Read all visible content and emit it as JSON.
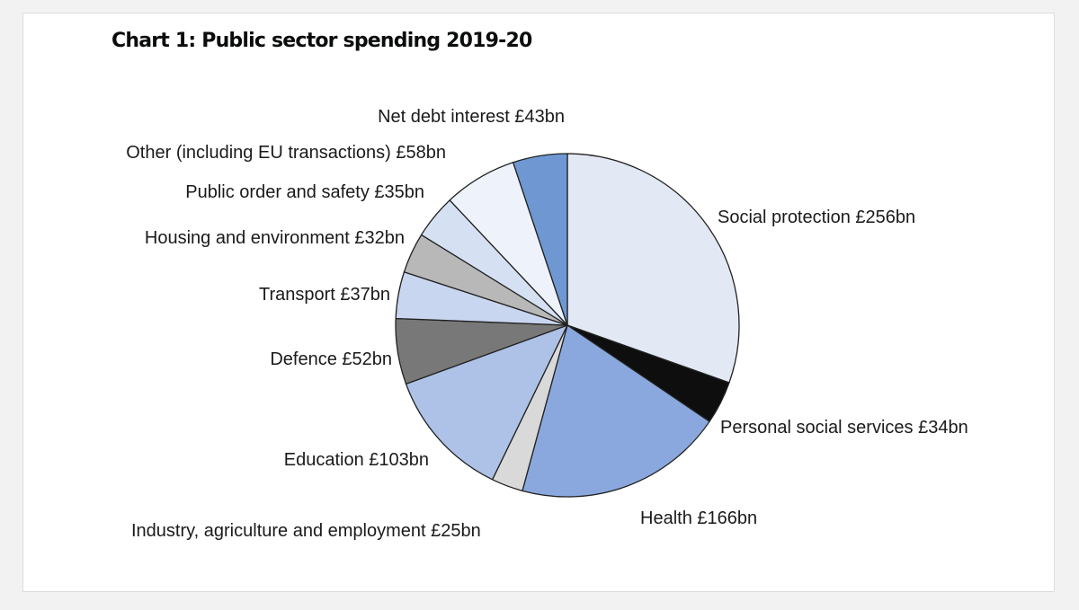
{
  "chart_data": {
    "type": "pie",
    "title": "Chart 1: Public sector spending 2019-20",
    "unit": "£bn",
    "slices": [
      {
        "name": "Social protection",
        "value": 256,
        "label": "Social protection £256bn",
        "color": "#e2e8f4"
      },
      {
        "name": "Personal social services",
        "value": 34,
        "label": "Personal social services £34bn",
        "color": "#0e0e0e"
      },
      {
        "name": "Health",
        "value": 166,
        "label": "Health £166bn",
        "color": "#8aa8dd"
      },
      {
        "name": "Industry, agriculture and employment",
        "value": 25,
        "label": "Industry, agriculture and employment £25bn",
        "color": "#d9d9d9"
      },
      {
        "name": "Education",
        "value": 103,
        "label": "Education £103bn",
        "color": "#adc2e6"
      },
      {
        "name": "Defence",
        "value": 52,
        "label": "Defence £52bn",
        "color": "#787878"
      },
      {
        "name": "Transport",
        "value": 37,
        "label": "Transport £37bn",
        "color": "#c9d6ef"
      },
      {
        "name": "Housing and environment",
        "value": 32,
        "label": "Housing and environment £32bn",
        "color": "#b8b8b8"
      },
      {
        "name": "Public order and safety",
        "value": 35,
        "label": "Public order and safety £35bn",
        "color": "#d6e0f3"
      },
      {
        "name": "Other (including EU transactions)",
        "value": 58,
        "label": "Other (including EU transactions) £58bn",
        "color": "#eef2fa"
      },
      {
        "name": "Net debt interest",
        "value": 43,
        "label": "Net debt interest £43bn",
        "color": "#6f98d3"
      }
    ]
  }
}
